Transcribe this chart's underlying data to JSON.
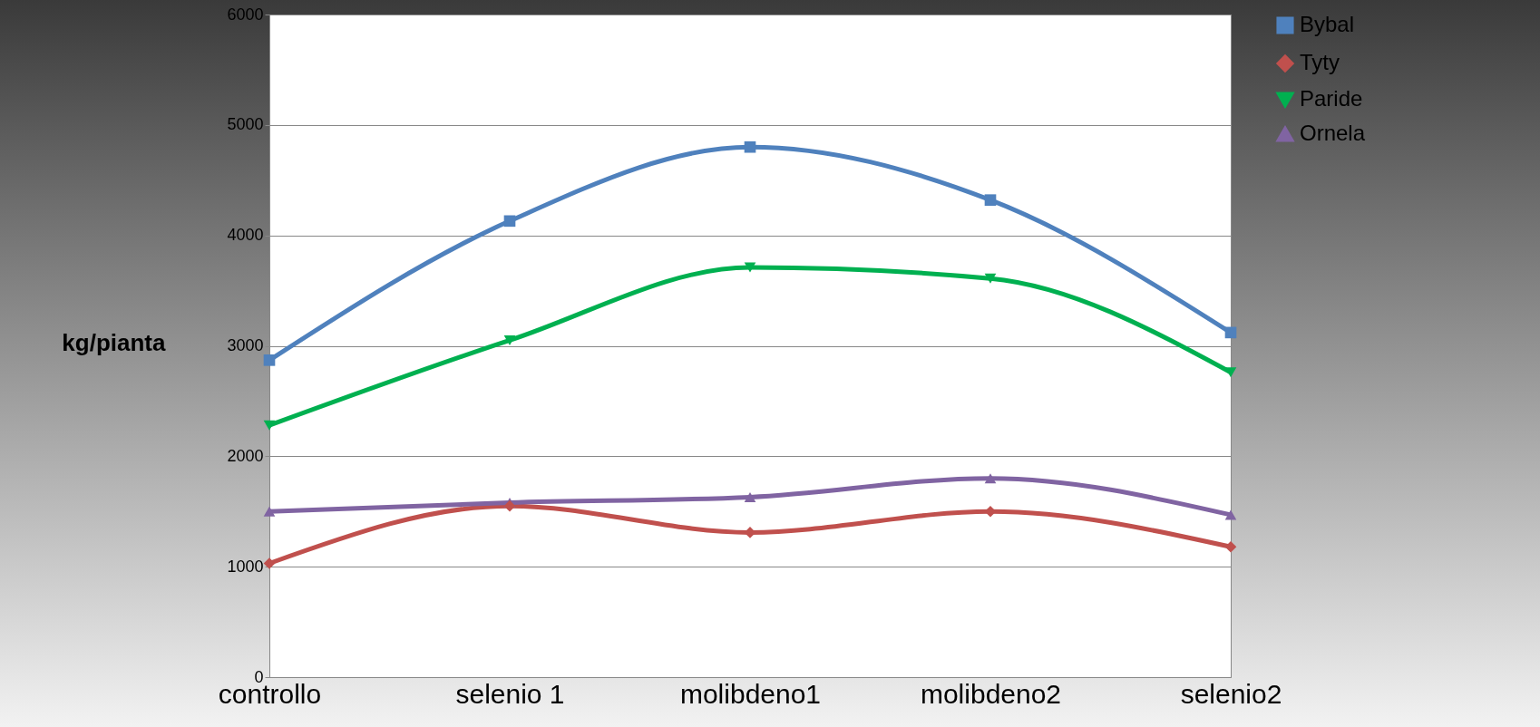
{
  "chart_data": {
    "type": "line",
    "ylabel": "kg/pianta",
    "categories": [
      "controllo",
      "selenio 1",
      "molibdeno1",
      "molibdeno2",
      "selenio2"
    ],
    "series": [
      {
        "name": "Bybal",
        "color": "#4f81bd",
        "marker": "square",
        "values": [
          2870,
          4130,
          4800,
          4320,
          3120
        ]
      },
      {
        "name": "Tyty",
        "color": "#c0504d",
        "marker": "diamond",
        "values": [
          1030,
          1550,
          1310,
          1500,
          1180
        ]
      },
      {
        "name": "Paride",
        "color": "#00b050",
        "marker": "triangle-down",
        "values": [
          2280,
          3050,
          3710,
          3610,
          2760
        ]
      },
      {
        "name": "Ornela",
        "color": "#8064a2",
        "marker": "triangle",
        "values": [
          1500,
          1580,
          1630,
          1800,
          1470
        ]
      }
    ],
    "ylim": [
      0,
      6000
    ],
    "yticks": [
      0,
      1000,
      2000,
      3000,
      4000,
      5000,
      6000
    ],
    "grid": "y",
    "legend": "right",
    "line_style": "solid"
  }
}
